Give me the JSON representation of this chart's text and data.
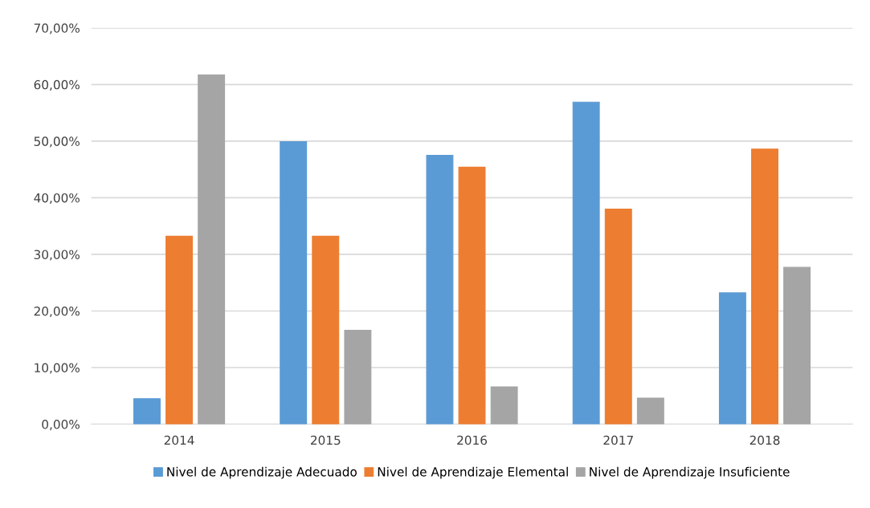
{
  "chart_data": {
    "type": "bar",
    "categories": [
      "2014",
      "2015",
      "2016",
      "2017",
      "2018"
    ],
    "series": [
      {
        "name": "Nivel de Aprendizaje Adecuado",
        "color": "#5b9bd5",
        "values": [
          4.5,
          49.9,
          47.5,
          56.9,
          23.2
        ]
      },
      {
        "name": "Nivel de Aprendizaje Elemental",
        "color": "#ed7d31",
        "values": [
          33.2,
          33.2,
          45.4,
          38.0,
          48.6
        ]
      },
      {
        "name": "Nivel de Aprendizaje Insuficiente",
        "color": "#a5a5a5",
        "values": [
          61.7,
          16.6,
          6.6,
          4.6,
          27.7
        ]
      }
    ],
    "ylim": [
      0,
      70
    ],
    "yticks": [
      {
        "value": 0,
        "label": "0,00%"
      },
      {
        "value": 10,
        "label": "10,00%"
      },
      {
        "value": 20,
        "label": "20,00%"
      },
      {
        "value": 30,
        "label": "30,00%"
      },
      {
        "value": 40,
        "label": "40,00%"
      },
      {
        "value": 50,
        "label": "50,00%"
      },
      {
        "value": 60,
        "label": "60,00%"
      },
      {
        "value": 70,
        "label": "70,00%"
      }
    ],
    "grid": "y",
    "legend": "bottom"
  }
}
